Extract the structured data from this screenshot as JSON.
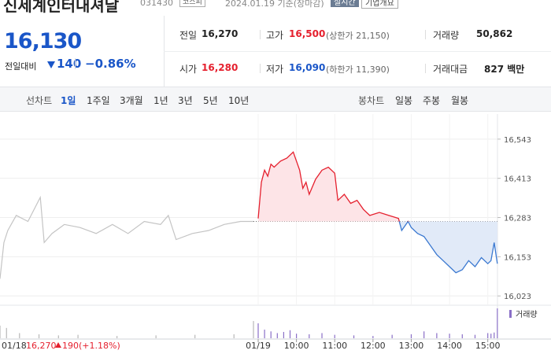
{
  "header": {
    "name": "신세계인터내셔날",
    "code": "031430",
    "market": "코스피",
    "date": "2024.01.19 기준(장마감)",
    "realtime": "실시간",
    "company_info": "기업개요"
  },
  "price": {
    "current": "16,130",
    "change_label": "전일대비",
    "change": "140",
    "change_rate": "−0.86%"
  },
  "summary": {
    "rows": [
      [
        {
          "label": "전일",
          "value": "16,270"
        },
        {
          "label": "고가",
          "value": "16,500",
          "note": "(상한가 21,150)"
        },
        {
          "label": "거래량",
          "value": "50,862"
        }
      ],
      [
        {
          "label": "시가",
          "value": "16,280"
        },
        {
          "label": "저가",
          "value": "16,090",
          "note": "(하한가 11,390)"
        },
        {
          "label": "거래대금",
          "value": "827 백만"
        }
      ]
    ]
  },
  "tabs": {
    "line_label": "선차트",
    "line_periods": [
      "1일",
      "1주일",
      "3개월",
      "1년",
      "3년",
      "5년",
      "10년"
    ],
    "candle_label": "봉차트",
    "candle_periods": [
      "일봉",
      "주봉",
      "월봉"
    ]
  },
  "chart_data": {
    "type": "line",
    "ylim": [
      16000,
      16600
    ],
    "yticks": [
      {
        "value": 16543,
        "label": "16,543"
      },
      {
        "value": 16413,
        "label": "16,413"
      },
      {
        "value": 16283,
        "label": "16,283"
      },
      {
        "value": 16153,
        "label": "16,153"
      },
      {
        "value": 16023,
        "label": "16,023"
      }
    ],
    "xlim": [
      "09:00",
      "15:30"
    ],
    "xticks": [
      {
        "value": "09:00",
        "label": "01/19"
      },
      "10:00",
      "11:00",
      "12:00",
      "13:00",
      "14:00",
      "15:00"
    ],
    "baseline": 16270,
    "prev": {
      "color": "#c4c4c4",
      "x": [
        "09:00",
        "09:06",
        "09:12",
        "09:25",
        "09:43",
        "10:02",
        "10:08",
        "10:20",
        "10:39",
        "11:03",
        "11:28",
        "11:53",
        "12:17",
        "12:42",
        "13:07",
        "13:19",
        "13:31",
        "13:56",
        "14:21",
        "14:45",
        "15:10",
        "15:30"
      ],
      "values": [
        16080,
        16200,
        16240,
        16290,
        16270,
        16350,
        16200,
        16230,
        16260,
        16250,
        16230,
        16260,
        16230,
        16270,
        16260,
        16290,
        16210,
        16230,
        16240,
        16260,
        16270,
        16270
      ]
    },
    "today": {
      "up_color": "#e5202e",
      "down_color": "#3a78d0",
      "up_fill": "#fde4e7",
      "down_fill": "#e1eaf8",
      "x": [
        "09:00",
        "09:05",
        "09:10",
        "09:15",
        "09:20",
        "09:25",
        "09:35",
        "09:45",
        "09:55",
        "10:00",
        "10:05",
        "10:10",
        "10:15",
        "10:20",
        "10:30",
        "10:40",
        "10:50",
        "11:00",
        "11:05",
        "11:15",
        "11:25",
        "11:35",
        "11:45",
        "11:55",
        "12:10",
        "12:25",
        "12:40",
        "12:45",
        "12:55",
        "13:00",
        "13:10",
        "13:20",
        "13:30",
        "13:40",
        "13:50",
        "14:00",
        "14:10",
        "14:20",
        "14:30",
        "14:40",
        "14:50",
        "15:00",
        "15:05",
        "15:10",
        "15:15"
      ],
      "values": [
        16280,
        16400,
        16440,
        16420,
        16460,
        16450,
        16470,
        16480,
        16500,
        16470,
        16440,
        16380,
        16400,
        16360,
        16410,
        16440,
        16450,
        16430,
        16340,
        16360,
        16330,
        16340,
        16310,
        16290,
        16300,
        16290,
        16280,
        16240,
        16270,
        16250,
        16230,
        16220,
        16190,
        16160,
        16140,
        16120,
        16100,
        16110,
        16140,
        16120,
        16150,
        16130,
        16140,
        16200,
        16130
      ]
    },
    "volume": {
      "name": "거래량",
      "color": "#8a6fc7",
      "prev_color": "#b8b8b8",
      "prev": {
        "x": [
          "09:00",
          "09:10",
          "09:30",
          "10:00",
          "10:30",
          "11:00",
          "12:00",
          "13:00",
          "14:00",
          "15:00",
          "15:30"
        ],
        "values": [
          2200,
          1800,
          900,
          700,
          500,
          600,
          400,
          500,
          600,
          700,
          3000
        ]
      },
      "today": {
        "x": [
          "09:00",
          "09:10",
          "09:20",
          "09:30",
          "09:40",
          "09:50",
          "10:00",
          "10:20",
          "10:40",
          "11:00",
          "11:30",
          "12:00",
          "12:30",
          "13:00",
          "13:20",
          "13:40",
          "14:00",
          "14:20",
          "14:40",
          "15:00",
          "15:05",
          "15:10",
          "15:15"
        ],
        "values": [
          2600,
          1500,
          1200,
          900,
          1100,
          1400,
          800,
          700,
          900,
          600,
          500,
          400,
          600,
          700,
          1200,
          900,
          800,
          700,
          600,
          900,
          800,
          1000,
          5200
        ]
      }
    },
    "prev_label": {
      "date": "01/18",
      "close": "16,270",
      "change": "190",
      "rate": "(+1.18%)"
    }
  }
}
